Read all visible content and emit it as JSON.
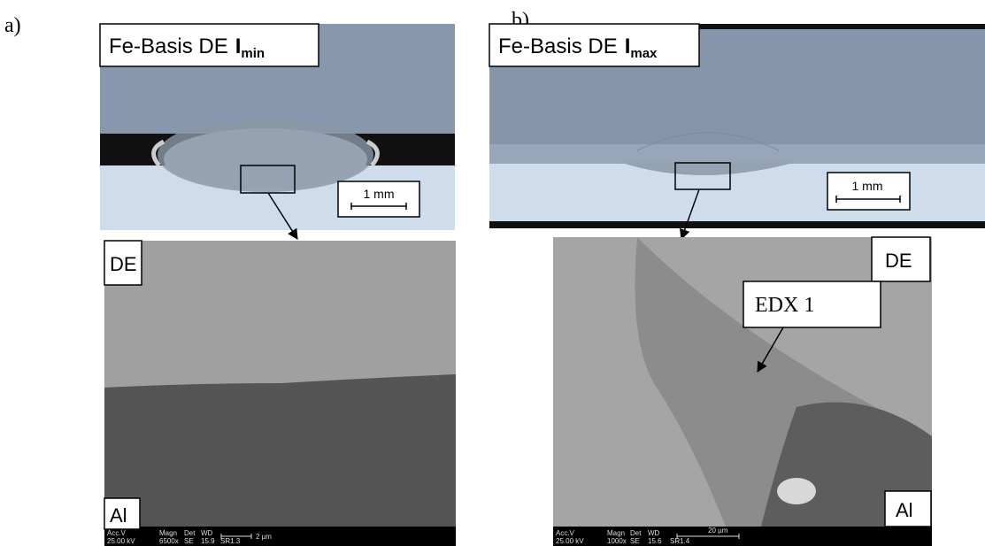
{
  "panels": [
    {
      "label": "a)",
      "macro": {
        "title": "Fe-Basis DE",
        "title_symbol": "I",
        "title_subscript": "min",
        "scale_bar": "1 mm"
      },
      "sem": {
        "top_label": "DE",
        "bottom_label": "Al",
        "databar": {
          "acc_v_label": "Acc.V",
          "acc_v": "25.00 kV",
          "magn_label": "Magn",
          "magn": "6500x",
          "det_label": "Det",
          "det": "SE",
          "wd_label": "WD",
          "wd": "15.9",
          "scale": "2 µm",
          "id": "SR1.3"
        }
      }
    },
    {
      "label": "b)",
      "macro": {
        "title": "Fe-Basis DE",
        "title_symbol": "I",
        "title_subscript": "max",
        "scale_bar": "1 mm"
      },
      "sem": {
        "top_label": "DE",
        "bottom_label": "Al",
        "annotation": "EDX 1",
        "databar": {
          "acc_v_label": "Acc.V",
          "acc_v": "25.00 kV",
          "magn_label": "Magn",
          "magn": "1000x",
          "det_label": "Det",
          "det": "SE",
          "wd_label": "WD",
          "wd": "15.6",
          "scale": "20 µm",
          "id": "SR1.4"
        }
      }
    }
  ]
}
